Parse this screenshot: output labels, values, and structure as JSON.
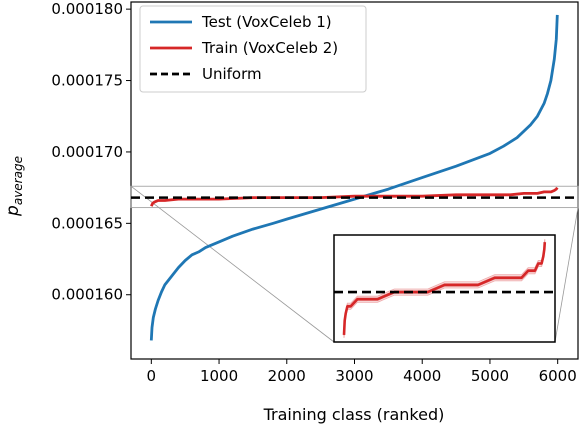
{
  "chart_data": {
    "type": "line",
    "xlabel": "Training class (ranked)",
    "ylabel_main": "p",
    "ylabel_sub": "average",
    "xlim": [
      -300,
      6300
    ],
    "ylim": [
      0.0001555,
      0.0001805
    ],
    "x_ticks": [
      0,
      1000,
      2000,
      3000,
      4000,
      5000,
      6000
    ],
    "x_tick_labels": [
      "0",
      "1000",
      "2000",
      "3000",
      "4000",
      "5000",
      "6000"
    ],
    "y_ticks": [
      0.00016,
      0.000165,
      0.00017,
      0.000175,
      0.00018
    ],
    "y_tick_labels": [
      "0.000160",
      "0.000165",
      "0.000170",
      "0.000175",
      "0.000180"
    ],
    "grid": false,
    "legend": "top-left",
    "series": [
      {
        "name": "Test (VoxCeleb 1)",
        "color": "#1f77b4",
        "x": [
          0,
          10,
          30,
          60,
          100,
          150,
          200,
          300,
          400,
          500,
          600,
          700,
          800,
          1000,
          1200,
          1500,
          1800,
          2000,
          2500,
          3000,
          3500,
          4000,
          4500,
          5000,
          5200,
          5400,
          5600,
          5700,
          5800,
          5850,
          5900,
          5950,
          5980,
          5994
        ],
        "y": [
          0.0001568,
          0.0001577,
          0.0001584,
          0.000159,
          0.0001596,
          0.0001602,
          0.0001607,
          0.0001613,
          0.0001619,
          0.0001624,
          0.0001628,
          0.000163,
          0.0001633,
          0.0001637,
          0.0001641,
          0.0001646,
          0.000165,
          0.0001653,
          0.000166,
          0.0001667,
          0.0001674,
          0.0001682,
          0.000169,
          0.0001699,
          0.0001704,
          0.000171,
          0.0001719,
          0.0001725,
          0.0001734,
          0.0001741,
          0.000175,
          0.0001765,
          0.0001779,
          0.0001796
        ]
      },
      {
        "name": "Train (VoxCeleb 2)",
        "color": "#d62728",
        "x": [
          0,
          20,
          50,
          100,
          200,
          400,
          600,
          1000,
          1500,
          2000,
          2500,
          3000,
          3500,
          4000,
          4500,
          5000,
          5300,
          5500,
          5700,
          5800,
          5900,
          5950,
          5980,
          5994
        ],
        "y": [
          0.0001662,
          0.0001664,
          0.0001665,
          0.0001666,
          0.0001666,
          0.0001667,
          0.0001667,
          0.0001667,
          0.0001668,
          0.0001668,
          0.0001668,
          0.0001669,
          0.0001669,
          0.0001669,
          0.000167,
          0.000167,
          0.000167,
          0.0001671,
          0.0001671,
          0.0001672,
          0.0001672,
          0.0001673,
          0.0001674,
          0.0001675
        ]
      },
      {
        "name": "Uniform",
        "color": "#000000",
        "dashed": true,
        "y_const": 0.0001668
      }
    ],
    "inset": {
      "xlim": [
        -300,
        6300
      ],
      "ylim": [
        0.0001661,
        0.0001676
      ]
    }
  }
}
